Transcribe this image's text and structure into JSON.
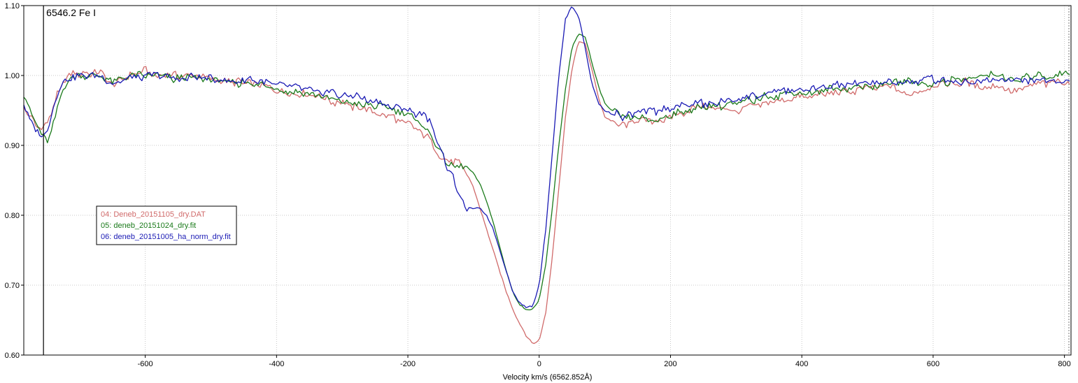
{
  "chart_data": {
    "type": "line",
    "xlabel": "Velocity km/s (6562.852Å)",
    "ylabel": "",
    "xlim": [
      -785,
      810
    ],
    "ylim": [
      0.6,
      1.1
    ],
    "x_ticks": [
      -600,
      -400,
      -200,
      0,
      200,
      400,
      600,
      800
    ],
    "x_tick_labels": [
      "-600",
      "-400",
      "-200",
      "0",
      "200",
      "400",
      "600",
      "800"
    ],
    "y_ticks": [
      0.6,
      0.7,
      0.8,
      0.9,
      1.0,
      1.1
    ],
    "y_tick_labels": [
      "0.60",
      "0.70",
      "0.80",
      "0.90",
      "1.00",
      "1.10"
    ],
    "grid": true,
    "legend_position": "middle-left",
    "marker": {
      "x": -755,
      "label": "6546.2 Fe I"
    },
    "series": [
      {
        "name": "04: Deneb_20151105_dry.DAT",
        "color": "#d06a6a",
        "x": [
          -785,
          -775,
          -765,
          -755,
          -745,
          -735,
          -725,
          -710,
          -690,
          -670,
          -650,
          -620,
          -600,
          -580,
          -550,
          -520,
          -500,
          -470,
          -440,
          -400,
          -360,
          -320,
          -280,
          -240,
          -220,
          -200,
          -180,
          -165,
          -150,
          -140,
          -130,
          -120,
          -110,
          -100,
          -90,
          -80,
          -70,
          -60,
          -50,
          -40,
          -30,
          -20,
          -10,
          0,
          10,
          20,
          30,
          40,
          50,
          60,
          70,
          80,
          90,
          100,
          110,
          120,
          130,
          150,
          180,
          210,
          250,
          300,
          350,
          400,
          450,
          500,
          540,
          560,
          600,
          650,
          680,
          700,
          720,
          750,
          780,
          810
        ],
        "y": [
          0.955,
          0.94,
          0.925,
          0.925,
          0.94,
          0.97,
          0.99,
          1.002,
          1.003,
          1.005,
          0.985,
          1.0,
          1.008,
          1.0,
          1.0,
          1.003,
          0.995,
          0.99,
          0.99,
          0.98,
          0.975,
          0.965,
          0.955,
          0.945,
          0.94,
          0.93,
          0.92,
          0.905,
          0.88,
          0.88,
          0.877,
          0.872,
          0.86,
          0.84,
          0.81,
          0.78,
          0.75,
          0.72,
          0.69,
          0.665,
          0.645,
          0.628,
          0.617,
          0.62,
          0.66,
          0.74,
          0.84,
          0.94,
          1.01,
          1.05,
          1.045,
          1.01,
          0.97,
          0.94,
          0.935,
          0.93,
          0.93,
          0.935,
          0.935,
          0.945,
          0.955,
          0.95,
          0.96,
          0.97,
          0.975,
          0.98,
          0.985,
          0.97,
          0.985,
          0.99,
          0.985,
          0.985,
          0.975,
          0.985,
          0.99,
          0.99
        ]
      },
      {
        "name": "05: deneb_20151024_dry.fit",
        "color": "#1a7a1a",
        "x": [
          -785,
          -775,
          -765,
          -755,
          -748,
          -740,
          -730,
          -720,
          -710,
          -690,
          -670,
          -650,
          -620,
          -600,
          -580,
          -550,
          -520,
          -500,
          -470,
          -440,
          -400,
          -360,
          -320,
          -280,
          -240,
          -220,
          -200,
          -180,
          -165,
          -150,
          -140,
          -130,
          -120,
          -110,
          -100,
          -90,
          -80,
          -70,
          -60,
          -50,
          -40,
          -30,
          -20,
          -10,
          0,
          10,
          20,
          30,
          40,
          50,
          60,
          70,
          80,
          90,
          100,
          110,
          120,
          130,
          150,
          180,
          210,
          250,
          300,
          350,
          400,
          450,
          500,
          540,
          600,
          650,
          680,
          700,
          720,
          750,
          780,
          810
        ],
        "y": [
          0.97,
          0.95,
          0.93,
          0.915,
          0.908,
          0.93,
          0.965,
          0.99,
          1.0,
          1.0,
          1.002,
          0.99,
          0.998,
          1.0,
          0.998,
          0.995,
          0.995,
          0.995,
          0.99,
          0.99,
          0.98,
          0.975,
          0.965,
          0.96,
          0.955,
          0.95,
          0.945,
          0.93,
          0.915,
          0.89,
          0.875,
          0.872,
          0.872,
          0.87,
          0.86,
          0.845,
          0.82,
          0.79,
          0.755,
          0.72,
          0.69,
          0.672,
          0.665,
          0.665,
          0.68,
          0.73,
          0.81,
          0.9,
          0.98,
          1.04,
          1.06,
          1.055,
          1.02,
          0.985,
          0.96,
          0.95,
          0.945,
          0.94,
          0.94,
          0.935,
          0.945,
          0.955,
          0.96,
          0.97,
          0.975,
          0.98,
          0.985,
          0.99,
          0.99,
          0.995,
          1.0,
          1.0,
          0.99,
          0.998,
          1.0,
          1.005
        ]
      },
      {
        "name": "06: deneb_20151005_ha_norm_dry.fit",
        "color": "#1a1ab4",
        "x": [
          -785,
          -775,
          -765,
          -755,
          -748,
          -740,
          -730,
          -720,
          -710,
          -690,
          -670,
          -650,
          -620,
          -600,
          -580,
          -550,
          -520,
          -500,
          -470,
          -440,
          -400,
          -360,
          -320,
          -280,
          -240,
          -220,
          -200,
          -180,
          -165,
          -150,
          -140,
          -130,
          -120,
          -110,
          -100,
          -90,
          -80,
          -70,
          -60,
          -50,
          -40,
          -30,
          -20,
          -10,
          0,
          10,
          20,
          30,
          40,
          50,
          60,
          70,
          80,
          90,
          100,
          110,
          120,
          130,
          150,
          180,
          210,
          250,
          300,
          350,
          400,
          450,
          500,
          540,
          600,
          650,
          680,
          700,
          720,
          750,
          780,
          810
        ],
        "y": [
          0.96,
          0.935,
          0.92,
          0.915,
          0.925,
          0.955,
          0.985,
          0.995,
          0.998,
          1.0,
          0.997,
          0.99,
          0.998,
          1.0,
          1.0,
          0.995,
          0.998,
          0.995,
          0.99,
          0.995,
          0.985,
          0.98,
          0.975,
          0.97,
          0.96,
          0.955,
          0.95,
          0.945,
          0.93,
          0.9,
          0.87,
          0.85,
          0.82,
          0.81,
          0.81,
          0.81,
          0.8,
          0.78,
          0.75,
          0.72,
          0.69,
          0.675,
          0.668,
          0.67,
          0.7,
          0.78,
          0.89,
          1.0,
          1.08,
          1.1,
          1.085,
          1.04,
          0.99,
          0.96,
          0.95,
          0.945,
          0.945,
          0.94,
          0.945,
          0.95,
          0.955,
          0.96,
          0.965,
          0.975,
          0.98,
          0.985,
          0.99,
          0.99,
          0.995,
          0.99,
          0.995,
          0.995,
          0.99,
          0.995,
          0.995,
          0.99
        ]
      }
    ]
  }
}
